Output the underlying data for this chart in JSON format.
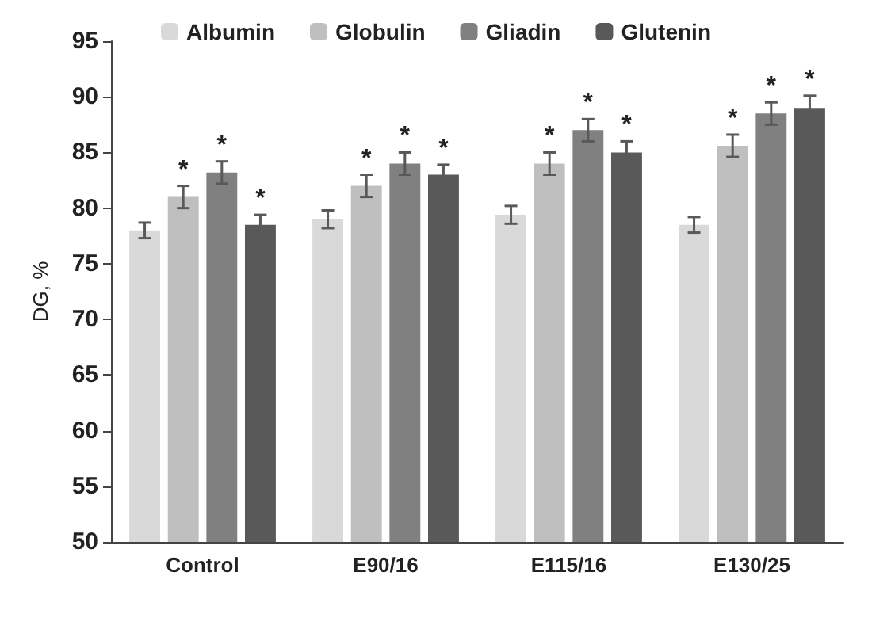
{
  "chart_data": {
    "type": "bar",
    "ylabel": "DG, %",
    "categories": [
      "Control",
      "E90/16",
      "E115/16",
      "E130/25"
    ],
    "series": [
      {
        "name": "Albumin",
        "color": "#d9d9d9",
        "values": [
          78,
          79,
          79.4,
          78.5
        ],
        "errors": [
          0.7,
          0.8,
          0.8,
          0.7
        ],
        "value_labels": [
          null,
          null,
          null,
          null
        ]
      },
      {
        "name": "Globulin",
        "color": "#bfbfbf",
        "values": [
          81,
          82,
          84,
          85.6
        ],
        "errors": [
          1,
          1,
          1,
          1
        ],
        "value_labels": [
          "*",
          "*",
          "*",
          "*"
        ]
      },
      {
        "name": "Gliadin",
        "color": "#808080",
        "values": [
          83.2,
          84,
          87,
          88.5
        ],
        "errors": [
          1,
          1,
          1,
          1
        ],
        "value_labels": [
          "*",
          "*",
          "*",
          "*"
        ]
      },
      {
        "name": "Glutenin",
        "color": "#595959",
        "values": [
          78.5,
          83,
          85,
          89
        ],
        "errors": [
          0.9,
          0.9,
          1,
          1.1
        ],
        "value_labels": [
          "*",
          "*",
          "*",
          "*"
        ]
      }
    ],
    "ylim": [
      50,
      95
    ],
    "yticks": [
      50,
      55,
      60,
      65,
      70,
      75,
      80,
      85,
      90,
      95
    ],
    "grid": false,
    "legend": "top"
  }
}
